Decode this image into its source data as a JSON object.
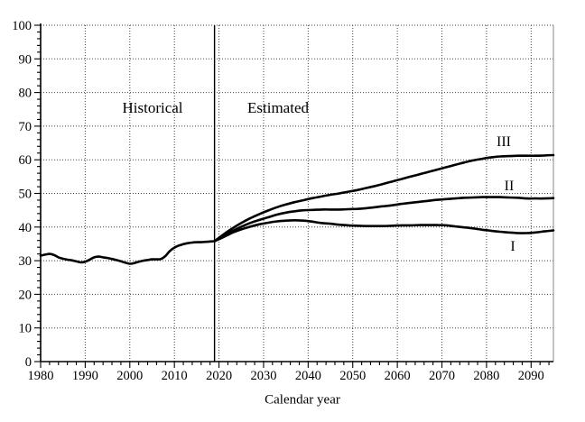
{
  "chart_data": {
    "type": "line",
    "title": "",
    "xlabel": "Calendar year",
    "ylabel": "",
    "xlim": [
      1980,
      2095
    ],
    "ylim": [
      0,
      100
    ],
    "x_major_tick_step": 10,
    "y_major_tick_step": 10,
    "x_minor_tick_step": 2,
    "y_minor_tick_step": 2,
    "x_tick_labels": [
      "1980",
      "1990",
      "2000",
      "2010",
      "2020",
      "2030",
      "2040",
      "2050",
      "2060",
      "2070",
      "2080",
      "2090"
    ],
    "y_tick_labels": [
      "0",
      "10",
      "20",
      "30",
      "40",
      "50",
      "60",
      "70",
      "80",
      "90",
      "100"
    ],
    "grid": "dotted-major-both-axes",
    "legend_position": "none",
    "divider_year": 2019,
    "region_labels": [
      {
        "text": "Historical",
        "x": 2005,
        "y": 75
      },
      {
        "text": "Estimated",
        "x": 2033,
        "y": 75
      }
    ],
    "colors": {
      "line": "#000000",
      "grid": "#444444",
      "axis": "#000000",
      "right_border": "#888888",
      "background": "#ffffff"
    },
    "series": [
      {
        "name": "Historical",
        "points": [
          [
            1980,
            31.5
          ],
          [
            1981,
            31.8
          ],
          [
            1982,
            32.0
          ],
          [
            1983,
            31.7
          ],
          [
            1984,
            31.0
          ],
          [
            1985,
            30.6
          ],
          [
            1986,
            30.3
          ],
          [
            1987,
            30.1
          ],
          [
            1988,
            29.8
          ],
          [
            1989,
            29.5
          ],
          [
            1990,
            29.7
          ],
          [
            1991,
            30.3
          ],
          [
            1992,
            31.0
          ],
          [
            1993,
            31.2
          ],
          [
            1994,
            31.0
          ],
          [
            1995,
            30.8
          ],
          [
            1996,
            30.5
          ],
          [
            1997,
            30.2
          ],
          [
            1998,
            29.8
          ],
          [
            1999,
            29.4
          ],
          [
            2000,
            29.1
          ],
          [
            2001,
            29.3
          ],
          [
            2002,
            29.7
          ],
          [
            2003,
            30.0
          ],
          [
            2004,
            30.2
          ],
          [
            2005,
            30.4
          ],
          [
            2006,
            30.4
          ],
          [
            2007,
            30.5
          ],
          [
            2008,
            31.4
          ],
          [
            2009,
            32.9
          ],
          [
            2010,
            33.9
          ],
          [
            2011,
            34.5
          ],
          [
            2012,
            34.9
          ],
          [
            2013,
            35.2
          ],
          [
            2014,
            35.4
          ],
          [
            2015,
            35.5
          ],
          [
            2016,
            35.5
          ],
          [
            2017,
            35.6
          ],
          [
            2018,
            35.7
          ],
          [
            2019,
            35.8
          ]
        ]
      },
      {
        "name": "I",
        "points": [
          [
            2019,
            35.8
          ],
          [
            2021,
            37.0
          ],
          [
            2023,
            38.3
          ],
          [
            2025,
            39.3
          ],
          [
            2027,
            40.1
          ],
          [
            2029,
            40.8
          ],
          [
            2031,
            41.3
          ],
          [
            2033,
            41.7
          ],
          [
            2035,
            41.9
          ],
          [
            2037,
            42.0
          ],
          [
            2039,
            41.9
          ],
          [
            2041,
            41.6
          ],
          [
            2043,
            41.2
          ],
          [
            2045,
            41.0
          ],
          [
            2047,
            40.7
          ],
          [
            2049,
            40.5
          ],
          [
            2051,
            40.4
          ],
          [
            2053,
            40.3
          ],
          [
            2055,
            40.3
          ],
          [
            2057,
            40.3
          ],
          [
            2059,
            40.4
          ],
          [
            2061,
            40.5
          ],
          [
            2063,
            40.5
          ],
          [
            2065,
            40.6
          ],
          [
            2067,
            40.6
          ],
          [
            2069,
            40.6
          ],
          [
            2071,
            40.5
          ],
          [
            2073,
            40.2
          ],
          [
            2075,
            39.9
          ],
          [
            2077,
            39.6
          ],
          [
            2079,
            39.2
          ],
          [
            2081,
            38.9
          ],
          [
            2083,
            38.6
          ],
          [
            2085,
            38.4
          ],
          [
            2087,
            38.2
          ],
          [
            2089,
            38.2
          ],
          [
            2091,
            38.4
          ],
          [
            2093,
            38.7
          ],
          [
            2095,
            39.0
          ]
        ]
      },
      {
        "name": "II",
        "points": [
          [
            2019,
            35.8
          ],
          [
            2021,
            37.3
          ],
          [
            2023,
            38.8
          ],
          [
            2025,
            40.1
          ],
          [
            2027,
            41.2
          ],
          [
            2029,
            42.1
          ],
          [
            2031,
            42.9
          ],
          [
            2033,
            43.7
          ],
          [
            2035,
            44.3
          ],
          [
            2037,
            44.7
          ],
          [
            2039,
            45.0
          ],
          [
            2041,
            45.1
          ],
          [
            2043,
            45.2
          ],
          [
            2045,
            45.2
          ],
          [
            2047,
            45.2
          ],
          [
            2049,
            45.3
          ],
          [
            2051,
            45.4
          ],
          [
            2053,
            45.6
          ],
          [
            2055,
            45.9
          ],
          [
            2057,
            46.2
          ],
          [
            2059,
            46.5
          ],
          [
            2061,
            46.9
          ],
          [
            2063,
            47.2
          ],
          [
            2065,
            47.5
          ],
          [
            2067,
            47.8
          ],
          [
            2069,
            48.1
          ],
          [
            2071,
            48.3
          ],
          [
            2073,
            48.5
          ],
          [
            2075,
            48.7
          ],
          [
            2077,
            48.8
          ],
          [
            2079,
            48.9
          ],
          [
            2081,
            48.9
          ],
          [
            2083,
            48.9
          ],
          [
            2085,
            48.8
          ],
          [
            2087,
            48.7
          ],
          [
            2089,
            48.5
          ],
          [
            2091,
            48.5
          ],
          [
            2093,
            48.5
          ],
          [
            2095,
            48.6
          ]
        ]
      },
      {
        "name": "III",
        "points": [
          [
            2019,
            35.8
          ],
          [
            2021,
            37.8
          ],
          [
            2023,
            39.6
          ],
          [
            2025,
            41.2
          ],
          [
            2027,
            42.6
          ],
          [
            2029,
            43.8
          ],
          [
            2031,
            44.9
          ],
          [
            2033,
            45.9
          ],
          [
            2035,
            46.7
          ],
          [
            2037,
            47.4
          ],
          [
            2039,
            48.0
          ],
          [
            2041,
            48.6
          ],
          [
            2043,
            49.1
          ],
          [
            2045,
            49.6
          ],
          [
            2047,
            50.0
          ],
          [
            2049,
            50.5
          ],
          [
            2051,
            51.0
          ],
          [
            2053,
            51.6
          ],
          [
            2055,
            52.2
          ],
          [
            2057,
            52.9
          ],
          [
            2059,
            53.6
          ],
          [
            2061,
            54.3
          ],
          [
            2063,
            55.0
          ],
          [
            2065,
            55.7
          ],
          [
            2067,
            56.4
          ],
          [
            2069,
            57.1
          ],
          [
            2071,
            57.8
          ],
          [
            2073,
            58.5
          ],
          [
            2075,
            59.2
          ],
          [
            2077,
            59.8
          ],
          [
            2079,
            60.3
          ],
          [
            2081,
            60.7
          ],
          [
            2083,
            61.0
          ],
          [
            2085,
            61.1
          ],
          [
            2087,
            61.2
          ],
          [
            2089,
            61.2
          ],
          [
            2091,
            61.2
          ],
          [
            2093,
            61.3
          ],
          [
            2095,
            61.4
          ]
        ]
      }
    ]
  }
}
